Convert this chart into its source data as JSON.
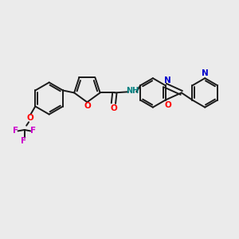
{
  "bg_color": "#ebebeb",
  "bond_color": "#1a1a1a",
  "O_color": "#ff0000",
  "N_color": "#0000cc",
  "F_color": "#cc00cc",
  "line_width": 1.4,
  "dbo": 0.12,
  "font_size": 7.5,
  "fig_w": 3.0,
  "fig_h": 3.0,
  "dpi": 100,
  "xlim": [
    0,
    10
  ],
  "ylim": [
    0,
    10
  ]
}
